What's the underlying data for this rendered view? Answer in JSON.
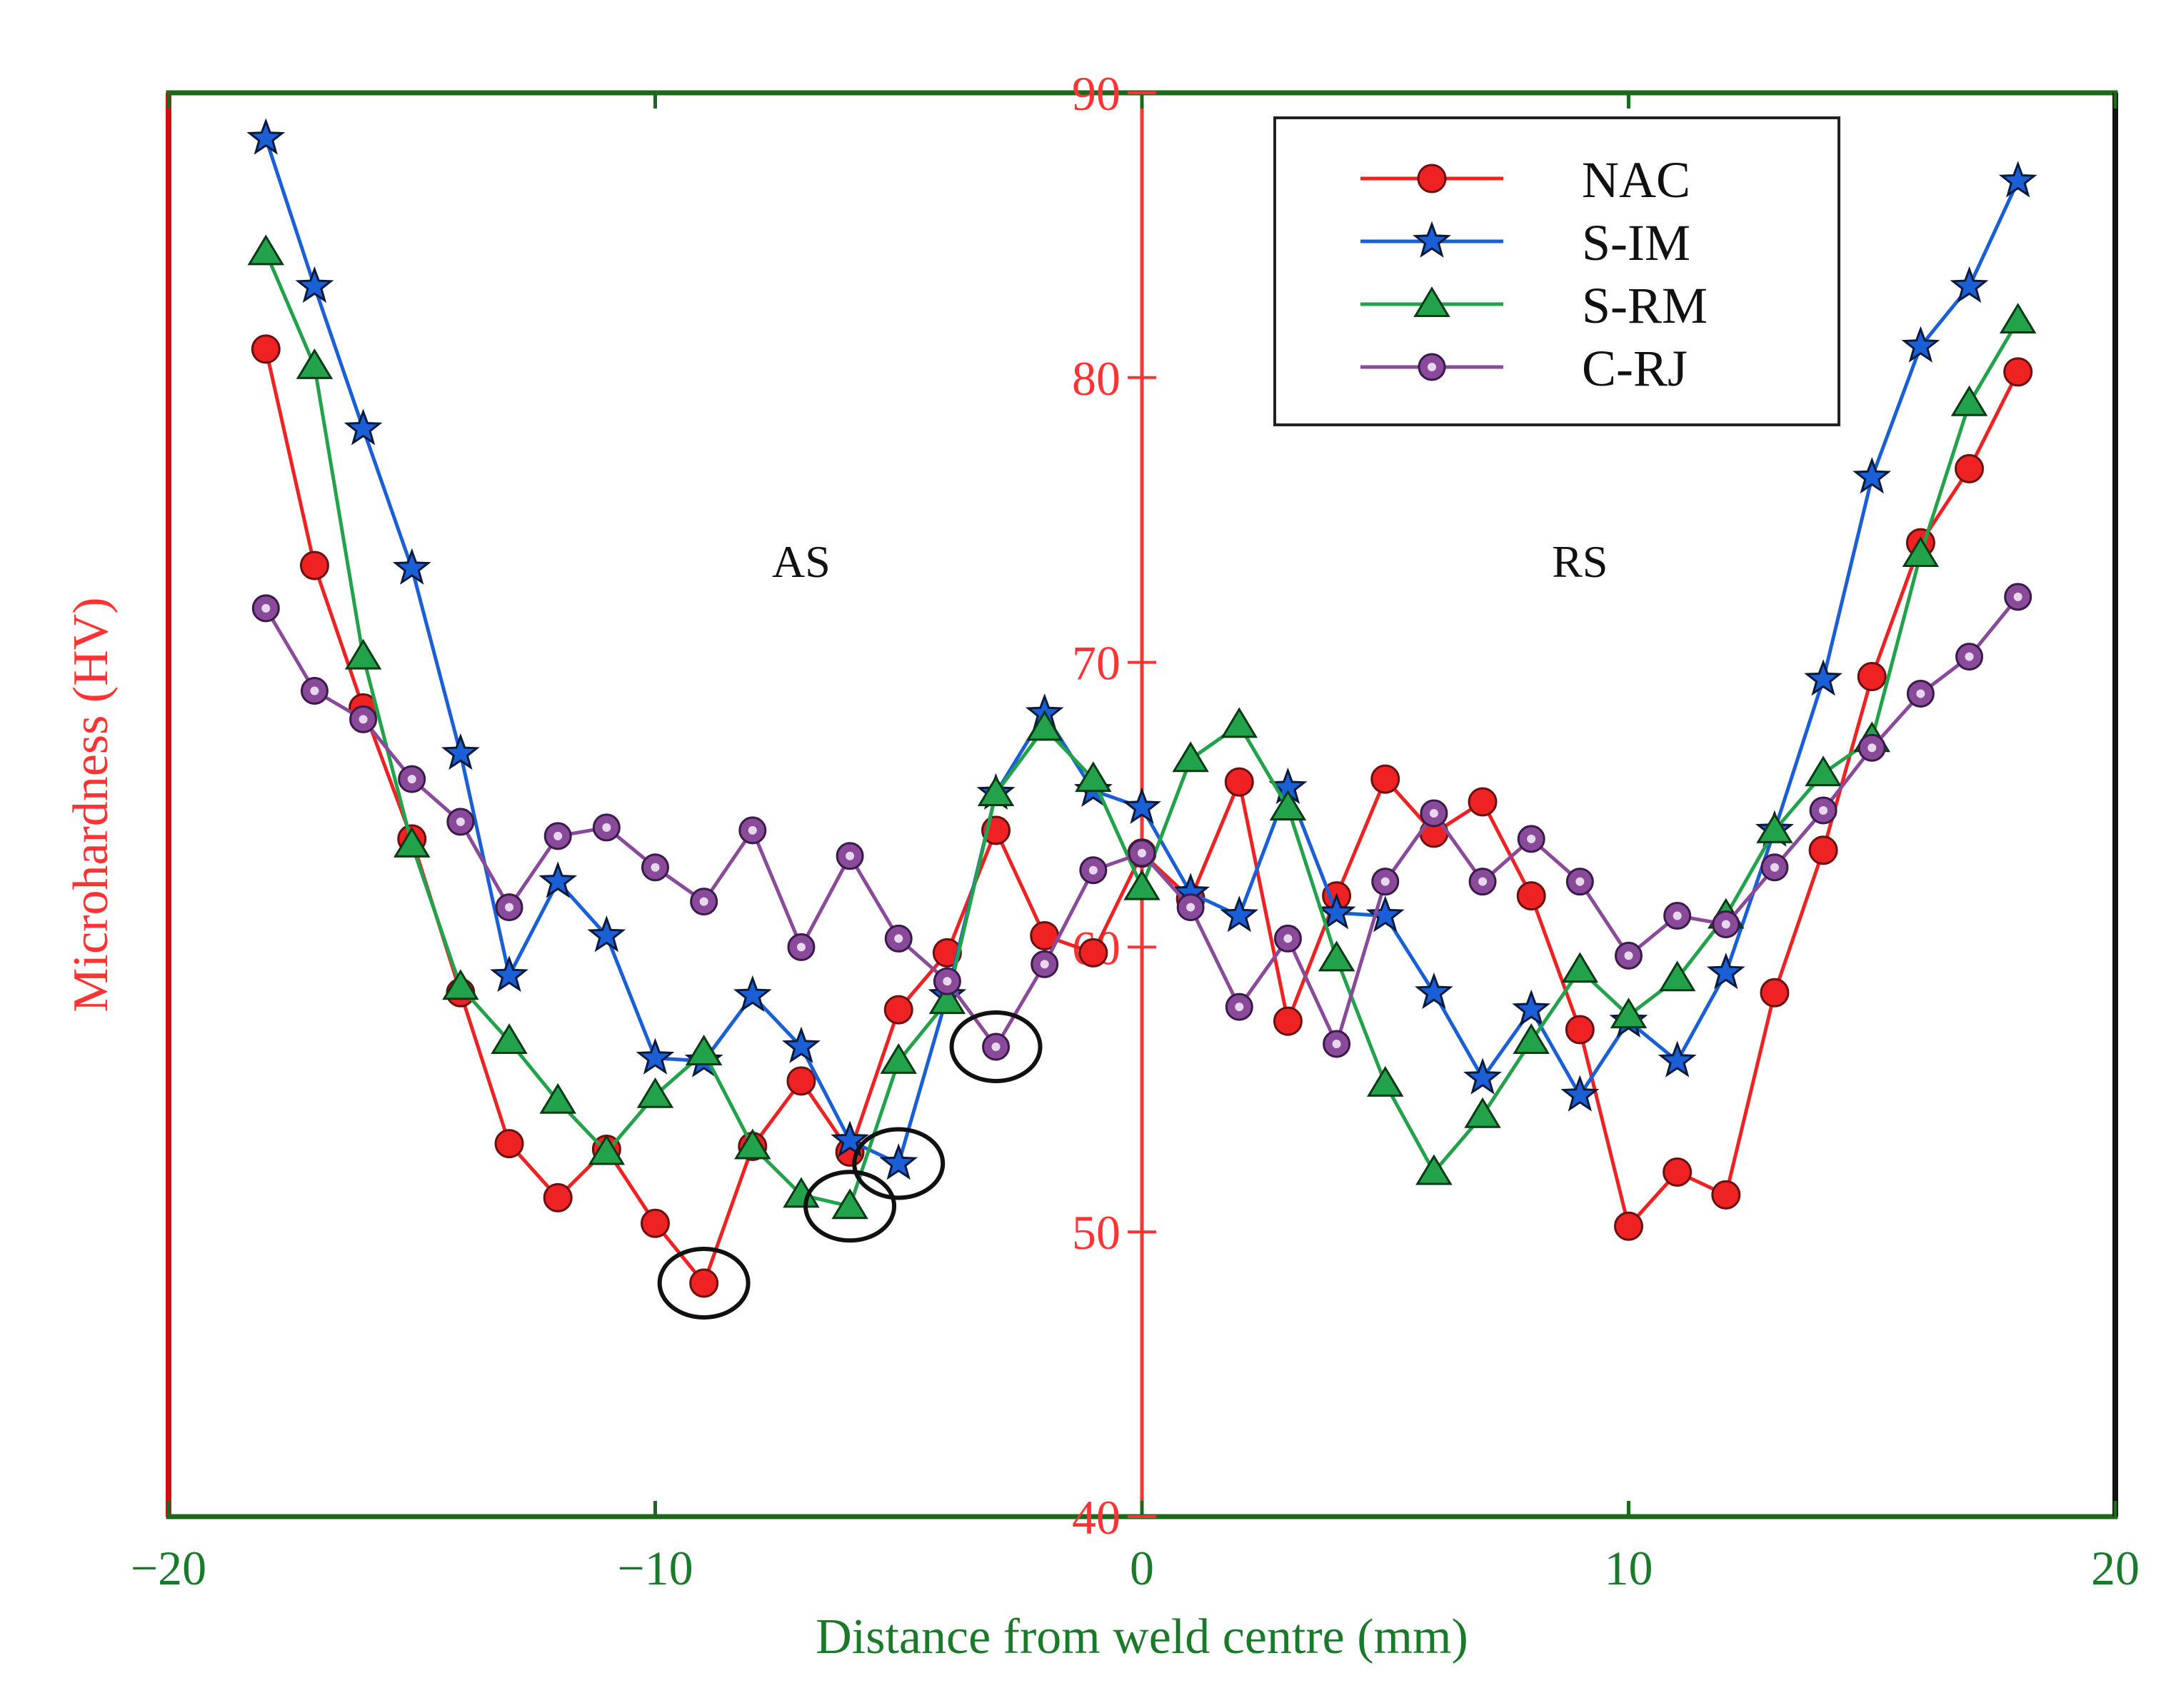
{
  "chart_data": {
    "type": "line",
    "title": "",
    "xlabel": "Distance from weld centre (mm)",
    "ylabel": "Microhardness (HV)",
    "xlim": [
      -20,
      20
    ],
    "ylim": [
      40,
      90
    ],
    "xticks": [
      -20,
      -10,
      0,
      10,
      20
    ],
    "xtick_labels": [
      "−20",
      "−10",
      "0",
      "10",
      "20"
    ],
    "yticks": [
      40,
      50,
      60,
      70,
      80,
      90
    ],
    "ytick_labels": [
      "40",
      "50",
      "60",
      "70",
      "80",
      "90"
    ],
    "legend_position": "top-right",
    "annotations": [
      {
        "text": "AS",
        "x": -7,
        "y": 73
      },
      {
        "text": "RS",
        "x": 9,
        "y": 73
      }
    ],
    "highlighted_points": [
      {
        "series": "NAC",
        "x": -9,
        "y": 48.2
      },
      {
        "series": "S-RM",
        "x": -6,
        "y": 50.9
      },
      {
        "series": "S-IM",
        "x": -5,
        "y": 52.4
      },
      {
        "series": "C-RJ",
        "x": -3,
        "y": 56.5
      }
    ],
    "colors": {
      "NAC": "#ee2222",
      "S-IM": "#1a5fd6",
      "S-RM": "#22a24a",
      "C-RJ": "#8a4a9a",
      "x_axis_text": "#1a7a2a",
      "y_axis_text": "#ff3333",
      "frame": "#1a6a1a"
    },
    "x": [
      -18,
      -17,
      -16,
      -15,
      -14,
      -13,
      -12,
      -11,
      -10,
      -9,
      -8,
      -7,
      -6,
      -5,
      -4,
      -3,
      -2,
      -1,
      0,
      1,
      2,
      3,
      4,
      5,
      6,
      7,
      8,
      9,
      10,
      11,
      12,
      13,
      14,
      15,
      16,
      17,
      18
    ],
    "series": [
      {
        "name": "NAC",
        "marker": "circle",
        "values": [
          81,
          73.4,
          68.4,
          63.8,
          58.4,
          53.1,
          51.2,
          52.9,
          50.3,
          48.2,
          53.0,
          55.3,
          52.8,
          57.8,
          59.8,
          64.1,
          60.4,
          59.8,
          63.3,
          61.7,
          65.8,
          57.4,
          61.8,
          65.9,
          64.0,
          65.1,
          61.8,
          57.1,
          50.2,
          52.1,
          51.3,
          58.4,
          63.4,
          69.5,
          74.2,
          76.8,
          80.2
        ]
      },
      {
        "name": "S-IM",
        "marker": "star",
        "values": [
          88.4,
          83.2,
          78.2,
          73.3,
          66.8,
          59.0,
          62.3,
          60.4,
          56.1,
          56.0,
          58.3,
          56.5,
          53.2,
          52.4,
          58.3,
          65.4,
          68.2,
          65.5,
          64.9,
          61.9,
          61.1,
          65.6,
          61.2,
          61.1,
          58.4,
          55.4,
          57.8,
          54.8,
          57.4,
          56.0,
          59.1,
          64.1,
          69.4,
          76.5,
          81.1,
          83.2,
          86.9
        ]
      },
      {
        "name": "S-RM",
        "marker": "triangle",
        "values": [
          84.4,
          80.4,
          70.2,
          63.6,
          58.6,
          56.7,
          54.6,
          52.8,
          54.8,
          56.3,
          53.0,
          51.3,
          50.9,
          56.0,
          58.1,
          65.4,
          67.7,
          65.9,
          62.1,
          66.6,
          67.8,
          64.9,
          59.6,
          55.2,
          52.1,
          54.1,
          56.7,
          59.2,
          57.6,
          58.9,
          61.1,
          64.1,
          66.1,
          67.3,
          73.8,
          79.1,
          82.0
        ]
      },
      {
        "name": "C-RJ",
        "marker": "ring",
        "values": [
          71.9,
          69.0,
          68.0,
          65.9,
          64.4,
          61.4,
          63.9,
          64.2,
          62.8,
          61.6,
          64.1,
          60.0,
          63.2,
          60.3,
          58.8,
          56.5,
          59.4,
          62.7,
          63.3,
          61.4,
          57.9,
          60.3,
          56.6,
          62.3,
          64.7,
          62.3,
          63.8,
          62.3,
          59.7,
          61.1,
          60.8,
          62.8,
          64.8,
          67.0,
          68.9,
          70.2,
          72.3
        ]
      }
    ]
  }
}
